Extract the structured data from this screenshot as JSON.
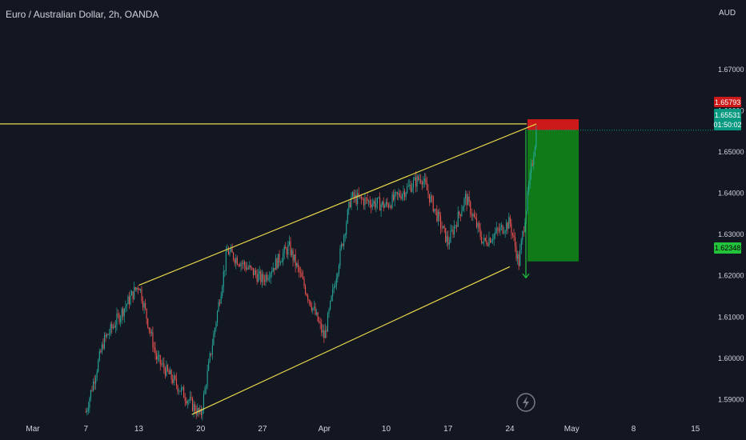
{
  "header": {
    "title": "Euro / Australian Dollar, 2h, OANDA",
    "currency": "AUD"
  },
  "price_badges": {
    "stop": "1.65793",
    "current": "1.65531",
    "countdown": "01:50:02",
    "target": "1.62348"
  },
  "icons": {
    "alert": "lightning-icon"
  },
  "colors": {
    "background": "#131722",
    "up": "#26a69a",
    "down": "#ef5350",
    "channel": "#ead84a",
    "stop_zone": "#cc1a1a",
    "target_zone": "#0f7a17",
    "current_badge": "#089981",
    "target_badge": "#22c33a"
  },
  "chart_data": {
    "type": "candlestick",
    "title": "Euro / Australian Dollar, 2h, OANDA",
    "ylim": [
      1.5835,
      1.6845
    ],
    "y_ticks": [
      "1.67000",
      "1.66000",
      "1.65000",
      "1.64000",
      "1.63000",
      "1.62000",
      "1.61000",
      "1.60000",
      "1.59000"
    ],
    "x_ticks": [
      "Mar",
      "7",
      "13",
      "20",
      "27",
      "Apr",
      "10",
      "17",
      "24",
      "May",
      "8",
      "15"
    ],
    "key_points": [
      {
        "date": "Mar 7",
        "price": 1.587
      },
      {
        "date": "Mar 9",
        "price": 1.604
      },
      {
        "date": "Mar 13",
        "price": 1.618
      },
      {
        "date": "Mar 15",
        "price": 1.6
      },
      {
        "date": "Mar 20",
        "price": 1.586
      },
      {
        "date": "Mar 23",
        "price": 1.626
      },
      {
        "date": "Mar 27",
        "price": 1.619
      },
      {
        "date": "Mar 30",
        "price": 1.627
      },
      {
        "date": "Apr 3",
        "price": 1.605
      },
      {
        "date": "Apr 6",
        "price": 1.639
      },
      {
        "date": "Apr 10",
        "price": 1.637
      },
      {
        "date": "Apr 14",
        "price": 1.644
      },
      {
        "date": "Apr 17",
        "price": 1.628
      },
      {
        "date": "Apr 19",
        "price": 1.639
      },
      {
        "date": "Apr 21",
        "price": 1.628
      },
      {
        "date": "Apr 24",
        "price": 1.633
      },
      {
        "date": "Apr 25",
        "price": 1.623
      },
      {
        "date": "Apr 27",
        "price": 1.655
      }
    ],
    "channel_lines": [
      {
        "name": "upper",
        "from": {
          "date": "Mar 13",
          "price": 1.6177
        },
        "to": {
          "date": "Apr 27",
          "price": 1.6568
        }
      },
      {
        "name": "lower",
        "from": {
          "date": "Mar 19",
          "price": 1.5864
        },
        "to": {
          "date": "Apr 24",
          "price": 1.6222
        }
      },
      {
        "name": "horizontal",
        "price": 1.6568
      }
    ],
    "short_position": {
      "entry": 1.65531,
      "stop": 1.65793,
      "target": 1.62348
    }
  }
}
